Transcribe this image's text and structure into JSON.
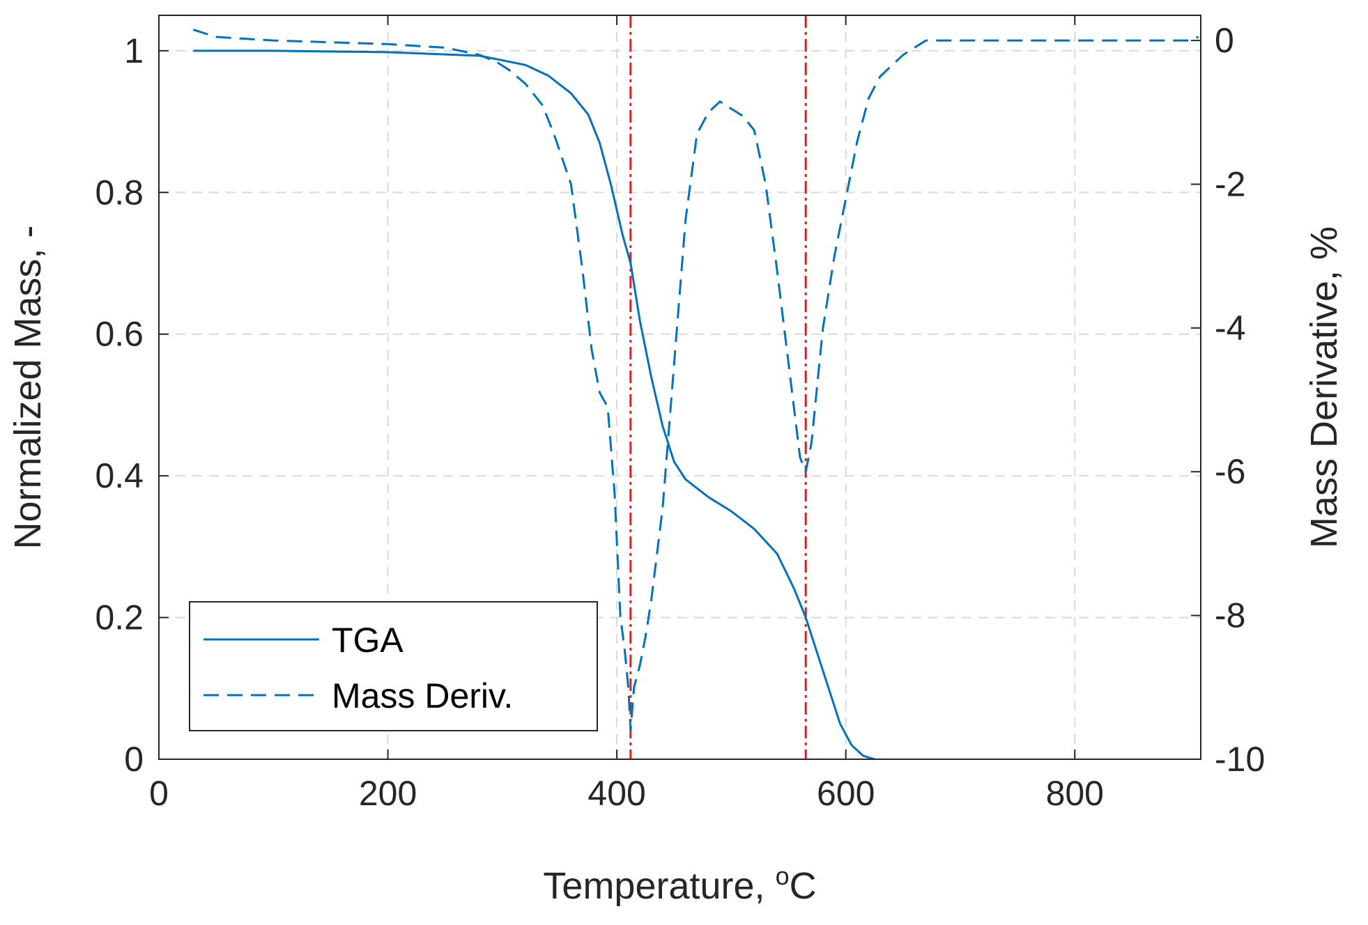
{
  "chart_data": {
    "type": "line",
    "title": "",
    "xlabel": "Temperature, ",
    "xlabel_superscript": "o",
    "xlabel_unit": "C",
    "ylabel_left": "Normalized Mass, -",
    "ylabel_right": "Mass Derivative, %",
    "xlim": [
      0,
      910
    ],
    "ylim_left": [
      0,
      1.05
    ],
    "ylim_right": [
      -10,
      0.35
    ],
    "xticks": [
      0,
      200,
      400,
      600,
      800
    ],
    "xtick_labels": [
      "0",
      "200",
      "400",
      "600",
      "800"
    ],
    "yticks_left": [
      0,
      0.2,
      0.4,
      0.6,
      0.8,
      1
    ],
    "ytick_labels_left": [
      "0",
      "0.2",
      "0.4",
      "0.6",
      "0.8",
      "1"
    ],
    "yticks_right": [
      -10,
      -8,
      -6,
      -4,
      -2,
      0
    ],
    "ytick_labels_right": [
      "-10",
      "-8",
      "-6",
      "-4",
      "-2",
      "0"
    ],
    "grid": true,
    "legend_position": "bottom-left",
    "vertical_lines": [
      412,
      565
    ],
    "series": [
      {
        "name": "TGA",
        "axis": "left",
        "style": "solid",
        "color": "#0072BD",
        "x": [
          30,
          100,
          200,
          280,
          320,
          340,
          360,
          375,
          385,
          395,
          405,
          412,
          420,
          430,
          440,
          450,
          460,
          480,
          500,
          520,
          540,
          555,
          565,
          575,
          585,
          595,
          605,
          615,
          625
        ],
        "y": [
          1.0,
          1.0,
          0.998,
          0.993,
          0.98,
          0.965,
          0.94,
          0.91,
          0.87,
          0.81,
          0.74,
          0.7,
          0.62,
          0.54,
          0.47,
          0.42,
          0.395,
          0.37,
          0.35,
          0.325,
          0.29,
          0.24,
          0.2,
          0.15,
          0.1,
          0.05,
          0.02,
          0.005,
          0.0
        ]
      },
      {
        "name": "Mass Deriv.",
        "axis": "right",
        "style": "dashed",
        "color": "#0072BD",
        "x": [
          30,
          50,
          100,
          200,
          250,
          280,
          295,
          305,
          320,
          335,
          345,
          360,
          370,
          378,
          385,
          392,
          398,
          403,
          407,
          410,
          412,
          415,
          420,
          425,
          430,
          440,
          450,
          460,
          470,
          480,
          490,
          500,
          510,
          520,
          530,
          540,
          550,
          560,
          565,
          570,
          575,
          580,
          590,
          600,
          610,
          620,
          630,
          640,
          650,
          660,
          670,
          690,
          720,
          760,
          800,
          850,
          900,
          908
        ],
        "y": [
          0.15,
          0.05,
          0.0,
          -0.05,
          -0.1,
          -0.2,
          -0.3,
          -0.4,
          -0.6,
          -0.9,
          -1.3,
          -2.0,
          -3.2,
          -4.3,
          -4.9,
          -5.1,
          -6.3,
          -8.0,
          -8.5,
          -9.0,
          -9.6,
          -9.0,
          -8.7,
          -8.3,
          -7.8,
          -6.5,
          -4.5,
          -2.5,
          -1.3,
          -1.0,
          -0.85,
          -0.95,
          -1.05,
          -1.25,
          -2.0,
          -3.2,
          -4.5,
          -5.8,
          -6.0,
          -5.6,
          -4.8,
          -4.0,
          -3.0,
          -2.2,
          -1.4,
          -0.8,
          -0.5,
          -0.35,
          -0.2,
          -0.1,
          0.0,
          0.0,
          0.0,
          0.0,
          0.0,
          0.0,
          0.0,
          0.05
        ]
      }
    ]
  }
}
